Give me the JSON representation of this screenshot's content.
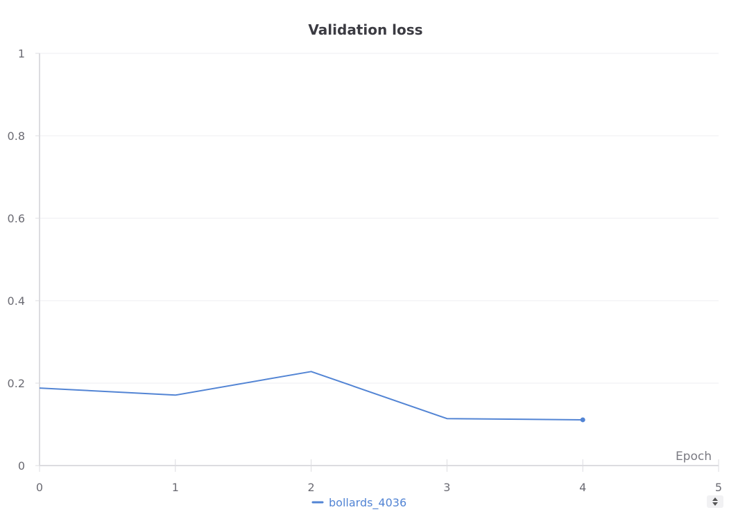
{
  "chart_data": {
    "type": "line",
    "title": "Validation loss",
    "xlabel": "Epoch",
    "ylabel": "",
    "xlim": [
      0,
      5
    ],
    "ylim": [
      0,
      1
    ],
    "x_ticks": [
      "0",
      "1",
      "2",
      "3",
      "4",
      "5"
    ],
    "y_ticks": [
      "0",
      "0.2",
      "0.4",
      "0.6",
      "0.8",
      "1"
    ],
    "grid": true,
    "legend_position": "bottom-center",
    "series": [
      {
        "name": "bollards_4036",
        "color": "#5284d4",
        "x": [
          0,
          1,
          2,
          3,
          4
        ],
        "y": [
          0.188,
          0.171,
          0.228,
          0.114,
          0.111
        ]
      }
    ]
  },
  "legend": {
    "scroll_icon": "up-down-arrows-icon"
  }
}
